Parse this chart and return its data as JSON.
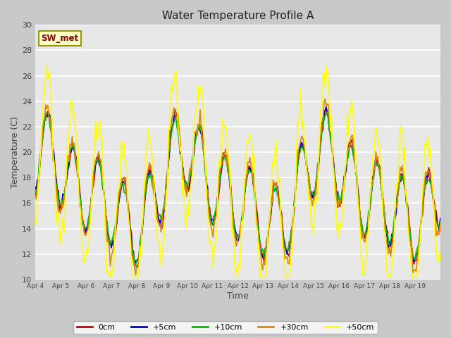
{
  "title": "Water Temperature Profile A",
  "xlabel": "Time",
  "ylabel": "Temperature (C)",
  "ylim": [
    10,
    30
  ],
  "series": {
    "0cm": {
      "color": "#cc0000",
      "lw": 1.2
    },
    "+5cm": {
      "color": "#0000cc",
      "lw": 1.2
    },
    "+10cm": {
      "color": "#00bb00",
      "lw": 1.2
    },
    "+30cm": {
      "color": "#dd8800",
      "lw": 1.2
    },
    "+50cm": {
      "color": "#ffff00",
      "lw": 1.2
    }
  },
  "sw_met_label": "SW_met",
  "sw_met_fg": "#8b0000",
  "sw_met_bg": "#ffffcc",
  "sw_met_border": "#999900",
  "tick_dates": [
    "Apr 4",
    "Apr 5",
    "Apr 6",
    "Apr 7",
    "Apr 8",
    "Apr 9",
    "Apr 10",
    "Apr 11",
    "Apr 12",
    "Apr 13",
    "Apr 14",
    "Apr 15",
    "Apr 16",
    "Apr 17",
    "Apr 18",
    "Apr 19"
  ],
  "yticks": [
    10,
    12,
    14,
    16,
    18,
    20,
    22,
    24,
    26,
    28,
    30
  ],
  "n_days": 16,
  "pts_per_day": 24
}
